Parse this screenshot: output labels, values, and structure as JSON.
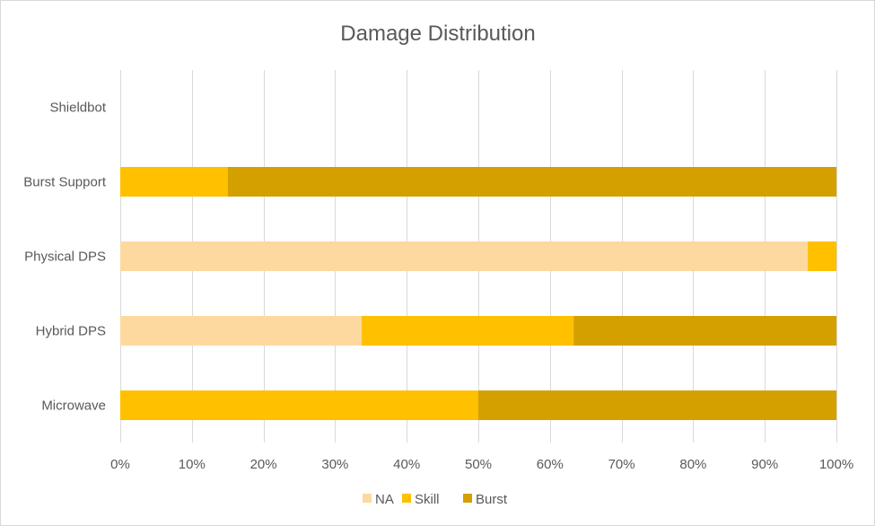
{
  "chart_data": {
    "type": "bar",
    "orientation": "horizontal",
    "stacked": "percent",
    "title": "Damage Distribution",
    "xlabel": "",
    "ylabel": "",
    "xlim": [
      0,
      1
    ],
    "x_ticks": [
      "0%",
      "10%",
      "20%",
      "30%",
      "40%",
      "50%",
      "60%",
      "70%",
      "80%",
      "90%",
      "100%"
    ],
    "categories": [
      "Shieldbot",
      "Burst Support",
      "Physical DPS",
      "Hybrid DPS",
      "Microwave"
    ],
    "series": [
      {
        "name": "NA",
        "color": "#FDD9A0",
        "values": [
          0,
          0,
          0.96,
          0.337,
          0
        ]
      },
      {
        "name": "Skill",
        "color": "#FFC000",
        "values": [
          0,
          0.15,
          0.04,
          0.296,
          0.5
        ]
      },
      {
        "name": "Burst",
        "color": "#D4A000",
        "values": [
          0,
          0.85,
          0,
          0.367,
          0.5
        ]
      }
    ],
    "grid": "vertical",
    "legend_position": "bottom"
  }
}
